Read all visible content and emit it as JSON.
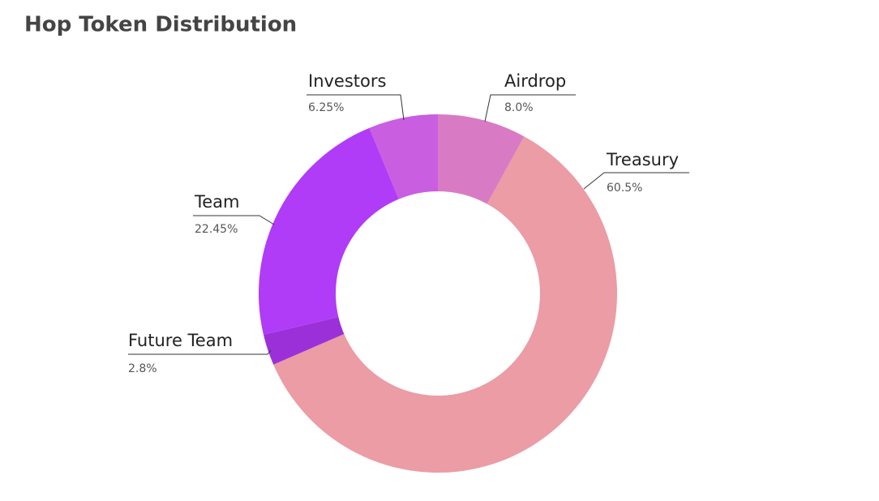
{
  "chart_data": {
    "type": "donut",
    "title": "Hop Token Distribution",
    "categories": [
      "Airdrop",
      "Treasury",
      "Future Team",
      "Team",
      "Investors"
    ],
    "values": [
      8.0,
      60.5,
      2.8,
      22.45,
      6.25
    ],
    "value_labels": [
      "8.0%",
      "60.5%",
      "2.8%",
      "22.45%",
      "6.25%"
    ],
    "colors": [
      "#d97bc4",
      "#eb9ca4",
      "#9b30d9",
      "#b03cf7",
      "#c95ee0"
    ]
  }
}
